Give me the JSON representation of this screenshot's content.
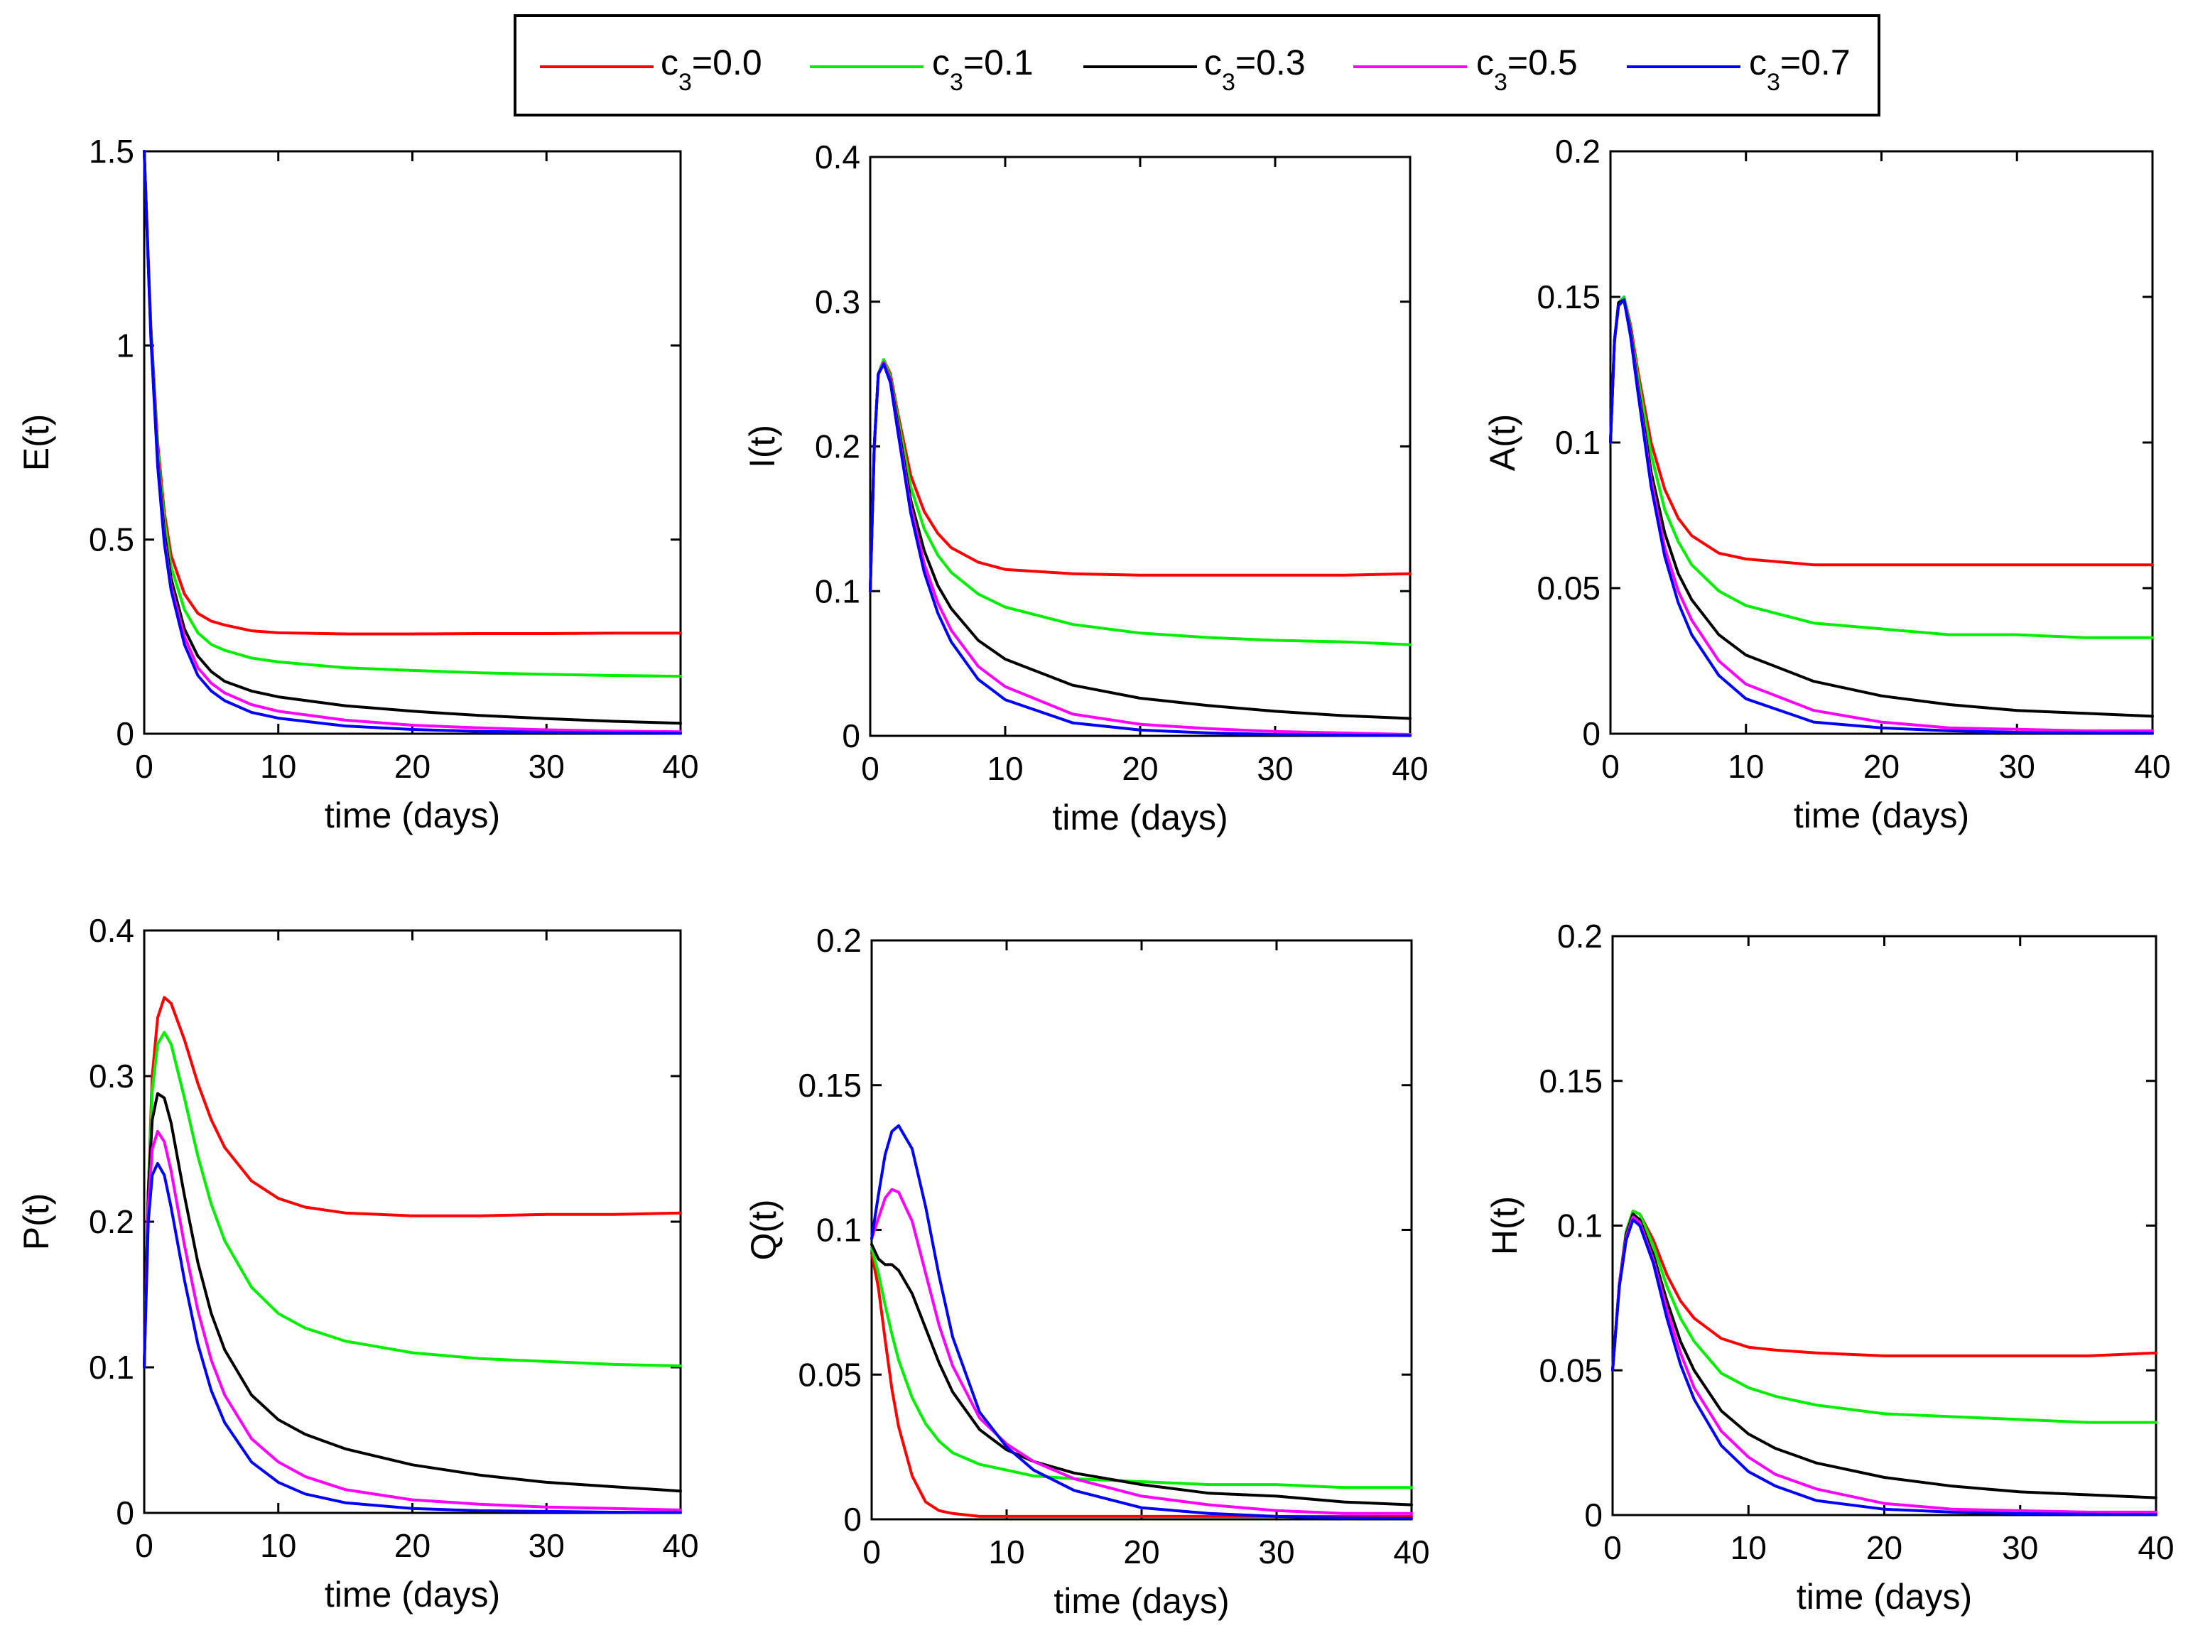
{
  "legend": {
    "items": [
      {
        "base": "c",
        "sub": "3",
        "rest": "=0.0",
        "color": "#ff0000"
      },
      {
        "base": "c",
        "sub": "3",
        "rest": "=0.1",
        "color": "#00ee00"
      },
      {
        "base": "c",
        "sub": "3",
        "rest": "=0.3",
        "color": "#000000"
      },
      {
        "base": "c",
        "sub": "3",
        "rest": "=0.5",
        "color": "#ff00ff"
      },
      {
        "base": "c",
        "sub": "3",
        "rest": "=0.7",
        "color": "#0000ff"
      }
    ]
  },
  "chart_data": [
    {
      "type": "line",
      "title": "",
      "xlabel": "time (days)",
      "ylabel": "E(t)",
      "xlim": [
        0,
        40
      ],
      "ylim": [
        0,
        1.5
      ],
      "xticks": [
        "0",
        "10",
        "20",
        "30",
        "40"
      ],
      "yticks": [
        "0",
        "0.5",
        "1",
        "1.5"
      ],
      "x": [
        0,
        0.5,
        1,
        1.5,
        2,
        3,
        4,
        5,
        6,
        8,
        10,
        15,
        20,
        25,
        30,
        35,
        40
      ],
      "series": [
        {
          "name": "c3=0.0",
          "values": [
            1.5,
            1.05,
            0.75,
            0.57,
            0.46,
            0.36,
            0.31,
            0.29,
            0.28,
            0.265,
            0.26,
            0.257,
            0.257,
            0.258,
            0.258,
            0.259,
            0.259
          ]
        },
        {
          "name": "c3=0.1",
          "values": [
            1.5,
            1.04,
            0.73,
            0.55,
            0.43,
            0.32,
            0.26,
            0.23,
            0.215,
            0.195,
            0.185,
            0.17,
            0.163,
            0.157,
            0.153,
            0.15,
            0.148
          ]
        },
        {
          "name": "c3=0.3",
          "values": [
            1.5,
            1.03,
            0.71,
            0.52,
            0.4,
            0.27,
            0.2,
            0.16,
            0.135,
            0.11,
            0.095,
            0.072,
            0.058,
            0.047,
            0.039,
            0.032,
            0.027
          ]
        },
        {
          "name": "c3=0.5",
          "values": [
            1.5,
            1.02,
            0.7,
            0.5,
            0.38,
            0.25,
            0.17,
            0.13,
            0.105,
            0.075,
            0.058,
            0.035,
            0.022,
            0.015,
            0.01,
            0.007,
            0.005
          ]
        },
        {
          "name": "c3=0.7",
          "values": [
            1.5,
            1.02,
            0.69,
            0.49,
            0.37,
            0.23,
            0.15,
            0.11,
            0.085,
            0.055,
            0.04,
            0.02,
            0.011,
            0.006,
            0.004,
            0.002,
            0.001
          ]
        }
      ]
    },
    {
      "type": "line",
      "title": "",
      "xlabel": "time (days)",
      "ylabel": "I(t)",
      "xlim": [
        0,
        40
      ],
      "ylim": [
        0,
        0.4
      ],
      "xticks": [
        "0",
        "10",
        "20",
        "30",
        "40"
      ],
      "yticks": [
        "0",
        "0.1",
        "0.2",
        "0.3",
        "0.4"
      ],
      "x": [
        0,
        0.3,
        0.6,
        1,
        1.5,
        2,
        3,
        4,
        5,
        6,
        8,
        10,
        15,
        20,
        25,
        30,
        35,
        40
      ],
      "series": [
        {
          "name": "c3=0.0",
          "values": [
            0.1,
            0.2,
            0.25,
            0.26,
            0.25,
            0.225,
            0.18,
            0.155,
            0.14,
            0.13,
            0.12,
            0.115,
            0.112,
            0.111,
            0.111,
            0.111,
            0.111,
            0.112
          ]
        },
        {
          "name": "c3=0.1",
          "values": [
            0.1,
            0.2,
            0.25,
            0.26,
            0.248,
            0.222,
            0.172,
            0.143,
            0.125,
            0.113,
            0.098,
            0.089,
            0.077,
            0.071,
            0.068,
            0.066,
            0.065,
            0.063
          ]
        },
        {
          "name": "c3=0.3",
          "values": [
            0.1,
            0.2,
            0.25,
            0.258,
            0.246,
            0.218,
            0.163,
            0.128,
            0.104,
            0.088,
            0.066,
            0.053,
            0.035,
            0.026,
            0.021,
            0.017,
            0.014,
            0.012
          ]
        },
        {
          "name": "c3=0.5",
          "values": [
            0.1,
            0.2,
            0.25,
            0.258,
            0.245,
            0.215,
            0.158,
            0.119,
            0.092,
            0.073,
            0.048,
            0.034,
            0.015,
            0.008,
            0.005,
            0.003,
            0.002,
            0.001
          ]
        },
        {
          "name": "c3=0.7",
          "values": [
            0.1,
            0.2,
            0.25,
            0.257,
            0.244,
            0.213,
            0.154,
            0.113,
            0.085,
            0.065,
            0.039,
            0.025,
            0.009,
            0.004,
            0.002,
            0.001,
            0.0005,
            0.0002
          ]
        }
      ]
    },
    {
      "type": "line",
      "title": "",
      "xlabel": "time (days)",
      "ylabel": "A(t)",
      "xlim": [
        0,
        40
      ],
      "ylim": [
        0,
        0.2
      ],
      "xticks": [
        "0",
        "10",
        "20",
        "30",
        "40"
      ],
      "yticks": [
        "0",
        "0.05",
        "0.1",
        "0.15",
        "0.2"
      ],
      "x": [
        0,
        0.3,
        0.6,
        1,
        1.5,
        2,
        3,
        4,
        5,
        6,
        8,
        10,
        15,
        20,
        25,
        30,
        35,
        40
      ],
      "series": [
        {
          "name": "c3=0.0",
          "values": [
            0.1,
            0.135,
            0.148,
            0.15,
            0.14,
            0.125,
            0.1,
            0.084,
            0.074,
            0.068,
            0.062,
            0.06,
            0.058,
            0.058,
            0.058,
            0.058,
            0.058,
            0.058
          ]
        },
        {
          "name": "c3=0.1",
          "values": [
            0.1,
            0.135,
            0.148,
            0.15,
            0.139,
            0.123,
            0.096,
            0.077,
            0.066,
            0.058,
            0.049,
            0.044,
            0.038,
            0.036,
            0.034,
            0.034,
            0.033,
            0.033
          ]
        },
        {
          "name": "c3=0.3",
          "values": [
            0.1,
            0.135,
            0.148,
            0.149,
            0.138,
            0.12,
            0.09,
            0.069,
            0.055,
            0.046,
            0.034,
            0.027,
            0.018,
            0.013,
            0.01,
            0.008,
            0.007,
            0.006
          ]
        },
        {
          "name": "c3=0.5",
          "values": [
            0.1,
            0.135,
            0.147,
            0.149,
            0.137,
            0.119,
            0.087,
            0.064,
            0.049,
            0.039,
            0.025,
            0.017,
            0.008,
            0.004,
            0.002,
            0.0015,
            0.001,
            0.001
          ]
        },
        {
          "name": "c3=0.7",
          "values": [
            0.1,
            0.135,
            0.147,
            0.149,
            0.136,
            0.118,
            0.085,
            0.061,
            0.045,
            0.034,
            0.02,
            0.012,
            0.004,
            0.002,
            0.001,
            0.0005,
            0.0003,
            0.0002
          ]
        }
      ]
    },
    {
      "type": "line",
      "title": "",
      "xlabel": "time (days)",
      "ylabel": "P(t)",
      "xlim": [
        0,
        40
      ],
      "ylim": [
        0,
        0.4
      ],
      "xticks": [
        "0",
        "10",
        "20",
        "30",
        "40"
      ],
      "yticks": [
        "0",
        "0.1",
        "0.2",
        "0.3",
        "0.4"
      ],
      "x": [
        0,
        0.3,
        0.6,
        1,
        1.5,
        2,
        3,
        4,
        5,
        6,
        8,
        10,
        12,
        15,
        20,
        25,
        30,
        35,
        40
      ],
      "series": [
        {
          "name": "c3=0.0",
          "values": [
            0.1,
            0.22,
            0.3,
            0.34,
            0.354,
            0.35,
            0.325,
            0.295,
            0.27,
            0.251,
            0.228,
            0.216,
            0.21,
            0.206,
            0.204,
            0.204,
            0.205,
            0.205,
            0.206
          ]
        },
        {
          "name": "c3=0.1",
          "values": [
            0.1,
            0.22,
            0.29,
            0.322,
            0.33,
            0.322,
            0.285,
            0.245,
            0.212,
            0.187,
            0.155,
            0.137,
            0.127,
            0.118,
            0.11,
            0.106,
            0.104,
            0.102,
            0.101
          ]
        },
        {
          "name": "c3=0.3",
          "values": [
            0.1,
            0.22,
            0.27,
            0.288,
            0.285,
            0.268,
            0.218,
            0.172,
            0.137,
            0.112,
            0.081,
            0.064,
            0.054,
            0.044,
            0.033,
            0.026,
            0.021,
            0.018,
            0.015
          ]
        },
        {
          "name": "c3=0.5",
          "values": [
            0.1,
            0.21,
            0.25,
            0.262,
            0.255,
            0.235,
            0.184,
            0.139,
            0.105,
            0.081,
            0.051,
            0.035,
            0.025,
            0.016,
            0.009,
            0.006,
            0.004,
            0.003,
            0.002
          ]
        },
        {
          "name": "c3=0.7",
          "values": [
            0.1,
            0.2,
            0.232,
            0.24,
            0.232,
            0.21,
            0.16,
            0.116,
            0.084,
            0.062,
            0.035,
            0.021,
            0.013,
            0.007,
            0.003,
            0.0015,
            0.001,
            0.0005,
            0.0003
          ]
        }
      ]
    },
    {
      "type": "line",
      "title": "",
      "xlabel": "time (days)",
      "ylabel": "Q(t)",
      "xlim": [
        0,
        40
      ],
      "ylim": [
        0,
        0.2
      ],
      "xticks": [
        "0",
        "10",
        "20",
        "30",
        "40"
      ],
      "yticks": [
        "0",
        "0.05",
        "0.1",
        "0.15",
        "0.2"
      ],
      "x": [
        0,
        0.5,
        1,
        1.5,
        2,
        3,
        4,
        5,
        6,
        8,
        10,
        12,
        15,
        20,
        25,
        30,
        35,
        40
      ],
      "series": [
        {
          "name": "c3=0.0",
          "values": [
            0.092,
            0.08,
            0.062,
            0.045,
            0.032,
            0.015,
            0.006,
            0.003,
            0.002,
            0.001,
            0.001,
            0.001,
            0.001,
            0.001,
            0.001,
            0.001,
            0.001,
            0.001
          ]
        },
        {
          "name": "c3=0.1",
          "values": [
            0.094,
            0.085,
            0.074,
            0.064,
            0.055,
            0.042,
            0.033,
            0.027,
            0.023,
            0.019,
            0.017,
            0.015,
            0.014,
            0.013,
            0.012,
            0.012,
            0.011,
            0.011
          ]
        },
        {
          "name": "c3=0.3",
          "values": [
            0.095,
            0.09,
            0.088,
            0.088,
            0.086,
            0.078,
            0.066,
            0.054,
            0.044,
            0.031,
            0.024,
            0.02,
            0.016,
            0.012,
            0.009,
            0.008,
            0.006,
            0.005
          ]
        },
        {
          "name": "c3=0.5",
          "values": [
            0.097,
            0.104,
            0.111,
            0.114,
            0.113,
            0.103,
            0.085,
            0.067,
            0.053,
            0.035,
            0.026,
            0.02,
            0.014,
            0.008,
            0.005,
            0.003,
            0.002,
            0.002
          ]
        },
        {
          "name": "c3=0.7",
          "values": [
            0.097,
            0.112,
            0.126,
            0.134,
            0.136,
            0.128,
            0.108,
            0.084,
            0.063,
            0.037,
            0.025,
            0.017,
            0.01,
            0.004,
            0.002,
            0.001,
            0.0005,
            0.0003
          ]
        }
      ]
    },
    {
      "type": "line",
      "title": "",
      "xlabel": "time (days)",
      "ylabel": "H(t)",
      "xlim": [
        0,
        40
      ],
      "ylim": [
        0,
        0.2
      ],
      "xticks": [
        "0",
        "10",
        "20",
        "30",
        "40"
      ],
      "yticks": [
        "0",
        "0.05",
        "0.1",
        "0.15",
        "0.2"
      ],
      "x": [
        0,
        0.5,
        1,
        1.5,
        2,
        3,
        4,
        5,
        6,
        8,
        10,
        12,
        15,
        20,
        25,
        30,
        35,
        40
      ],
      "series": [
        {
          "name": "c3=0.0",
          "values": [
            0.05,
            0.08,
            0.098,
            0.105,
            0.104,
            0.095,
            0.083,
            0.074,
            0.068,
            0.061,
            0.058,
            0.057,
            0.056,
            0.055,
            0.055,
            0.055,
            0.055,
            0.056
          ]
        },
        {
          "name": "c3=0.1",
          "values": [
            0.05,
            0.08,
            0.098,
            0.105,
            0.104,
            0.093,
            0.079,
            0.068,
            0.06,
            0.049,
            0.044,
            0.041,
            0.038,
            0.035,
            0.034,
            0.033,
            0.032,
            0.032
          ]
        },
        {
          "name": "c3=0.3",
          "values": [
            0.05,
            0.08,
            0.097,
            0.104,
            0.102,
            0.09,
            0.074,
            0.06,
            0.05,
            0.036,
            0.028,
            0.023,
            0.018,
            0.013,
            0.01,
            0.008,
            0.007,
            0.006
          ]
        },
        {
          "name": "c3=0.5",
          "values": [
            0.05,
            0.08,
            0.096,
            0.103,
            0.101,
            0.088,
            0.071,
            0.056,
            0.044,
            0.029,
            0.02,
            0.014,
            0.009,
            0.004,
            0.002,
            0.0015,
            0.001,
            0.001
          ]
        },
        {
          "name": "c3=0.7",
          "values": [
            0.05,
            0.079,
            0.095,
            0.102,
            0.1,
            0.087,
            0.068,
            0.052,
            0.04,
            0.024,
            0.015,
            0.01,
            0.005,
            0.002,
            0.001,
            0.0005,
            0.0003,
            0.0002
          ]
        }
      ]
    }
  ]
}
